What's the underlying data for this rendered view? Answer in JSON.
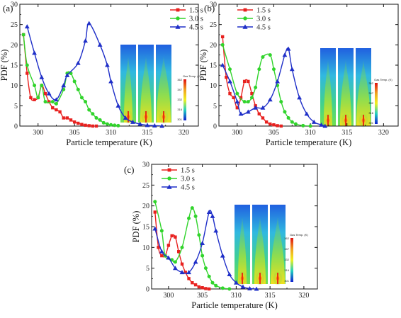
{
  "colors": {
    "s1": "#e8211f",
    "s2": "#31d42c",
    "s3": "#1f2fc8"
  },
  "colorbar_title": "Gas Temp. (K)",
  "chart_data": [
    {
      "type": "line",
      "panel_label": "(a)",
      "xlabel": "Particle temperature (K)",
      "ylabel": "PDF (%)",
      "xlim": [
        297.5,
        322
      ],
      "ylim": [
        0,
        30
      ],
      "xticks": [
        300,
        305,
        310,
        315,
        320
      ],
      "yticks": [
        0,
        5,
        10,
        15,
        20,
        25,
        30
      ],
      "legend_position": "top-center",
      "colorbar_labels": [
        "362",
        "347",
        "332",
        "316",
        "301"
      ],
      "series": [
        {
          "name": "1.5 s",
          "marker": "square",
          "points": [
            [
              298.0,
              22.5
            ],
            [
              298.5,
              13.0
            ],
            [
              299.0,
              7.0
            ],
            [
              299.5,
              6.5
            ],
            [
              300.0,
              7.0
            ],
            [
              300.5,
              10.0
            ],
            [
              301.0,
              8.0
            ],
            [
              301.5,
              6.0
            ],
            [
              302.0,
              4.5
            ],
            [
              302.5,
              4.0
            ],
            [
              303.0,
              3.5
            ],
            [
              303.5,
              2.0
            ],
            [
              304.0,
              2.0
            ],
            [
              304.5,
              1.5
            ],
            [
              305.0,
              1.0
            ],
            [
              305.5,
              0.7
            ],
            [
              306.0,
              0.4
            ],
            [
              306.5,
              0.2
            ],
            [
              307.0,
              0.1
            ],
            [
              307.5,
              0.0
            ],
            [
              308.0,
              0.0
            ]
          ]
        },
        {
          "name": "3.0 s",
          "marker": "circle",
          "points": [
            [
              298.0,
              22.5
            ],
            [
              298.5,
              15.0
            ],
            [
              299.5,
              10.0
            ],
            [
              300.0,
              7.0
            ],
            [
              300.5,
              10.0
            ],
            [
              301.0,
              6.0
            ],
            [
              302.0,
              6.0
            ],
            [
              302.5,
              5.5
            ],
            [
              303.5,
              9.0
            ],
            [
              304.0,
              13.0
            ],
            [
              304.5,
              13.0
            ],
            [
              305.0,
              11.0
            ],
            [
              305.5,
              9.0
            ],
            [
              306.0,
              7.0
            ],
            [
              306.5,
              6.0
            ],
            [
              307.0,
              4.0
            ],
            [
              307.5,
              3.0
            ],
            [
              308.0,
              2.0
            ],
            [
              308.5,
              1.5
            ],
            [
              309.0,
              0.8
            ],
            [
              309.5,
              0.5
            ],
            [
              310.0,
              0.3
            ],
            [
              310.5,
              0.2
            ],
            [
              311.0,
              0.1
            ]
          ]
        },
        {
          "name": "4.5 s",
          "marker": "triangle",
          "points": [
            [
              298.5,
              24.5
            ],
            [
              299.5,
              18.0
            ],
            [
              300.5,
              12.0
            ],
            [
              301.5,
              8.0
            ],
            [
              302.5,
              6.5
            ],
            [
              303.5,
              10.0
            ],
            [
              304.0,
              12.5
            ],
            [
              305.5,
              15.5
            ],
            [
              306.5,
              21.0
            ],
            [
              307.0,
              25.3
            ],
            [
              308.5,
              20.0
            ],
            [
              309.5,
              15.0
            ],
            [
              310.0,
              11.0
            ],
            [
              311.0,
              5.0
            ],
            [
              312.0,
              2.0
            ],
            [
              313.0,
              1.0
            ],
            [
              314.0,
              0.5
            ],
            [
              315.0,
              0.2
            ],
            [
              316.0,
              0.1
            ],
            [
              317.0,
              0.0
            ]
          ]
        }
      ]
    },
    {
      "type": "line",
      "panel_label": "(b)",
      "xlabel": "Particle temperature (K)",
      "ylabel": "PDF (%)",
      "xlim": [
        297.5,
        322
      ],
      "ylim": [
        0,
        30
      ],
      "xticks": [
        300,
        305,
        310,
        315,
        320
      ],
      "yticks": [
        0,
        5,
        10,
        15,
        20,
        25,
        30
      ],
      "legend_position": "top-center",
      "colorbar_labels": [
        "362",
        "347",
        "332",
        "316",
        "301"
      ],
      "series": [
        {
          "name": "1.5 s",
          "marker": "square",
          "points": [
            [
              298.0,
              22.0
            ],
            [
              298.5,
              12.0
            ],
            [
              299.0,
              8.0
            ],
            [
              299.5,
              7.0
            ],
            [
              300.0,
              4.5
            ],
            [
              300.5,
              7.0
            ],
            [
              301.0,
              11.0
            ],
            [
              301.5,
              11.0
            ],
            [
              302.0,
              8.0
            ],
            [
              302.5,
              5.0
            ],
            [
              303.0,
              3.0
            ],
            [
              303.5,
              2.0
            ],
            [
              304.0,
              1.0
            ],
            [
              304.5,
              0.5
            ],
            [
              305.0,
              0.3
            ],
            [
              305.5,
              0.1
            ],
            [
              306.0,
              0.0
            ]
          ]
        },
        {
          "name": "3.0 s",
          "marker": "circle",
          "points": [
            [
              298.0,
              20.0
            ],
            [
              299.0,
              14.0
            ],
            [
              300.0,
              8.0
            ],
            [
              301.0,
              6.0
            ],
            [
              301.5,
              6.0
            ],
            [
              302.0,
              7.0
            ],
            [
              302.5,
              9.5
            ],
            [
              303.0,
              14.0
            ],
            [
              303.5,
              17.0
            ],
            [
              304.5,
              17.5
            ],
            [
              305.0,
              14.0
            ],
            [
              305.5,
              10.0
            ],
            [
              306.0,
              6.0
            ],
            [
              306.5,
              3.5
            ],
            [
              307.0,
              2.0
            ],
            [
              307.5,
              1.0
            ],
            [
              308.0,
              0.5
            ],
            [
              309.0,
              0.1
            ],
            [
              310.0,
              0.0
            ]
          ]
        },
        {
          "name": "4.5 s",
          "marker": "triangle",
          "points": [
            [
              298.0,
              15.0
            ],
            [
              299.0,
              11.0
            ],
            [
              300.0,
              6.0
            ],
            [
              300.5,
              3.0
            ],
            [
              301.5,
              3.5
            ],
            [
              302.5,
              4.5
            ],
            [
              303.5,
              4.5
            ],
            [
              304.5,
              6.5
            ],
            [
              305.5,
              11.0
            ],
            [
              306.5,
              17.5
            ],
            [
              307.0,
              19.0
            ],
            [
              307.5,
              14.0
            ],
            [
              308.5,
              7.0
            ],
            [
              309.5,
              3.0
            ],
            [
              310.5,
              1.0
            ],
            [
              311.5,
              0.3
            ],
            [
              312.0,
              0.0
            ]
          ]
        }
      ]
    },
    {
      "type": "line",
      "panel_label": "(c)",
      "xlabel": "Particle temperature (K)",
      "ylabel": "PDF (%)",
      "xlim": [
        297.5,
        322
      ],
      "ylim": [
        0,
        30
      ],
      "xticks": [
        300,
        305,
        310,
        315,
        320
      ],
      "yticks": [
        0,
        5,
        10,
        15,
        20,
        25,
        30
      ],
      "legend_position": "top-center",
      "colorbar_labels": [
        "362",
        "347",
        "332",
        "316",
        "301"
      ],
      "series": [
        {
          "name": "1.5 s",
          "marker": "square",
          "points": [
            [
              298.0,
              18.5
            ],
            [
              298.5,
              10.0
            ],
            [
              299.0,
              8.0
            ],
            [
              299.5,
              8.0
            ],
            [
              300.0,
              10.5
            ],
            [
              300.5,
              12.8
            ],
            [
              301.0,
              12.5
            ],
            [
              301.5,
              9.0
            ],
            [
              302.0,
              6.0
            ],
            [
              302.5,
              4.0
            ],
            [
              303.0,
              2.5
            ],
            [
              303.5,
              1.5
            ],
            [
              304.0,
              1.0
            ],
            [
              304.5,
              0.5
            ],
            [
              305.0,
              0.3
            ],
            [
              305.5,
              0.1
            ],
            [
              306.0,
              0.0
            ]
          ]
        },
        {
          "name": "3.0 s",
          "marker": "circle",
          "points": [
            [
              298.0,
              21.0
            ],
            [
              299.0,
              14.0
            ],
            [
              299.5,
              8.0
            ],
            [
              300.5,
              7.0
            ],
            [
              301.0,
              6.5
            ],
            [
              302.0,
              10.0
            ],
            [
              303.0,
              17.0
            ],
            [
              303.5,
              19.5
            ],
            [
              304.0,
              17.5
            ],
            [
              304.5,
              13.0
            ],
            [
              305.0,
              8.0
            ],
            [
              305.5,
              5.0
            ],
            [
              306.0,
              3.0
            ],
            [
              306.5,
              1.5
            ],
            [
              307.0,
              0.8
            ],
            [
              308.0,
              0.2
            ],
            [
              309.0,
              0.0
            ]
          ]
        },
        {
          "name": "4.5 s",
          "marker": "triangle",
          "points": [
            [
              298.0,
              14.5
            ],
            [
              299.0,
              9.0
            ],
            [
              300.0,
              7.5
            ],
            [
              301.0,
              5.0
            ],
            [
              302.0,
              4.0
            ],
            [
              303.0,
              4.0
            ],
            [
              304.0,
              6.5
            ],
            [
              305.0,
              11.0
            ],
            [
              306.0,
              18.5
            ],
            [
              306.5,
              17.5
            ],
            [
              307.0,
              14.0
            ],
            [
              308.0,
              8.0
            ],
            [
              309.0,
              3.5
            ],
            [
              310.0,
              1.5
            ],
            [
              311.0,
              0.5
            ],
            [
              312.0,
              0.1
            ],
            [
              313.0,
              0.0
            ]
          ]
        }
      ]
    }
  ]
}
